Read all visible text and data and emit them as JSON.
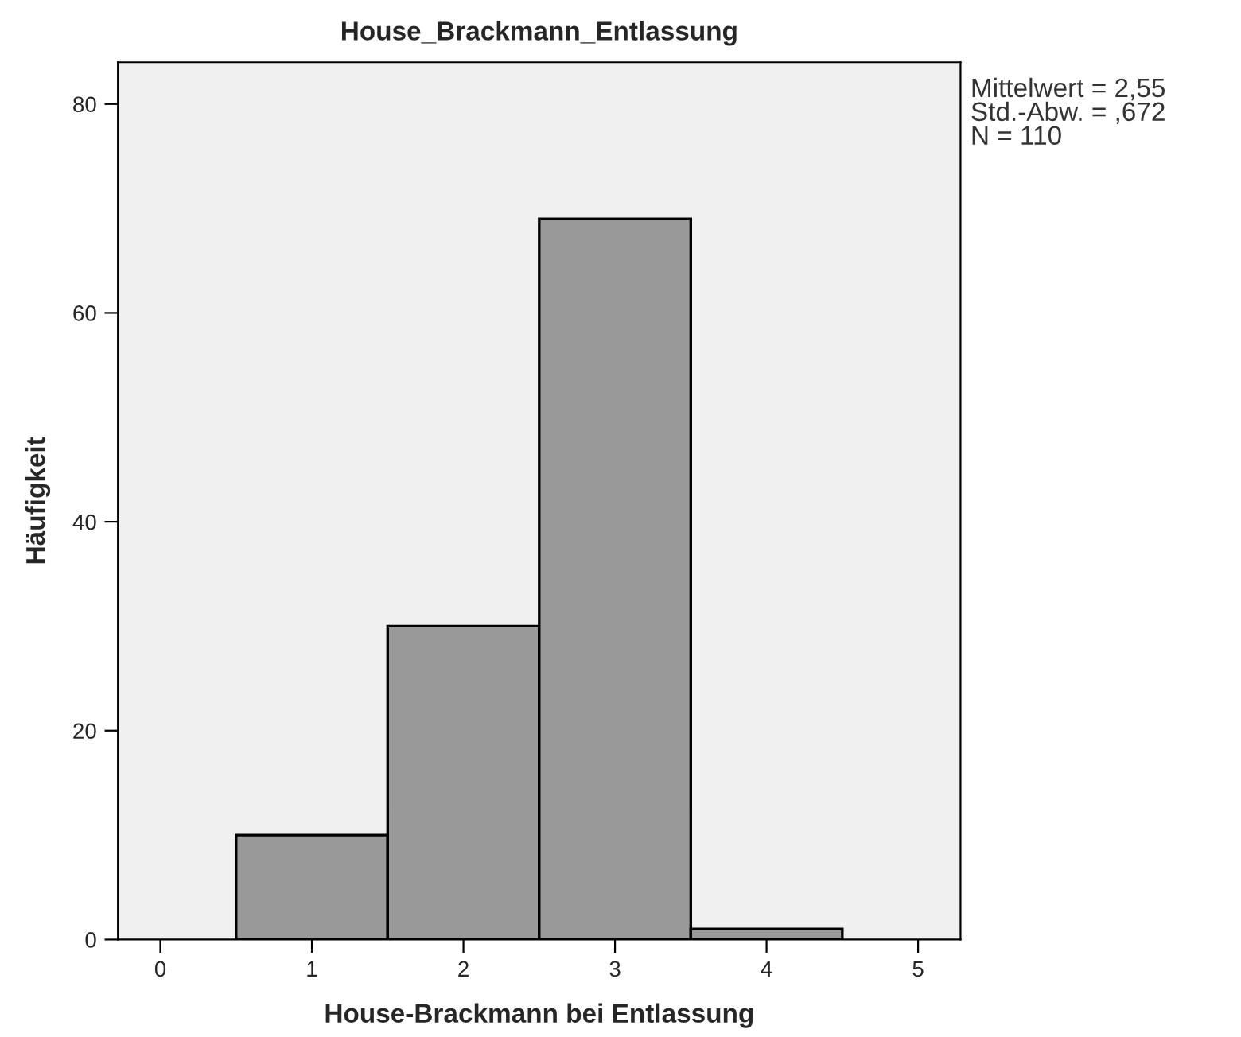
{
  "chart_data": {
    "type": "histogram",
    "title": "House_Brackmann_Entlassung",
    "xlabel": "House-Brackmann bei Entlassung",
    "ylabel": "Häufigkeit",
    "bins": [
      0.5,
      1.5,
      2.5,
      3.5,
      4.5
    ],
    "values": [
      10,
      30,
      69,
      1
    ],
    "color": "#999999",
    "xlim": [
      -0.28,
      5.28
    ],
    "xticks": [
      0,
      1,
      2,
      3,
      4,
      5
    ],
    "ylim": [
      0,
      84
    ],
    "yticks": [
      0,
      20,
      40,
      60,
      80
    ],
    "grid": false,
    "legend": false,
    "annotations": [
      "Mittelwert = 2,55\nStd.-Abw. = ,672\nN = 110"
    ]
  }
}
